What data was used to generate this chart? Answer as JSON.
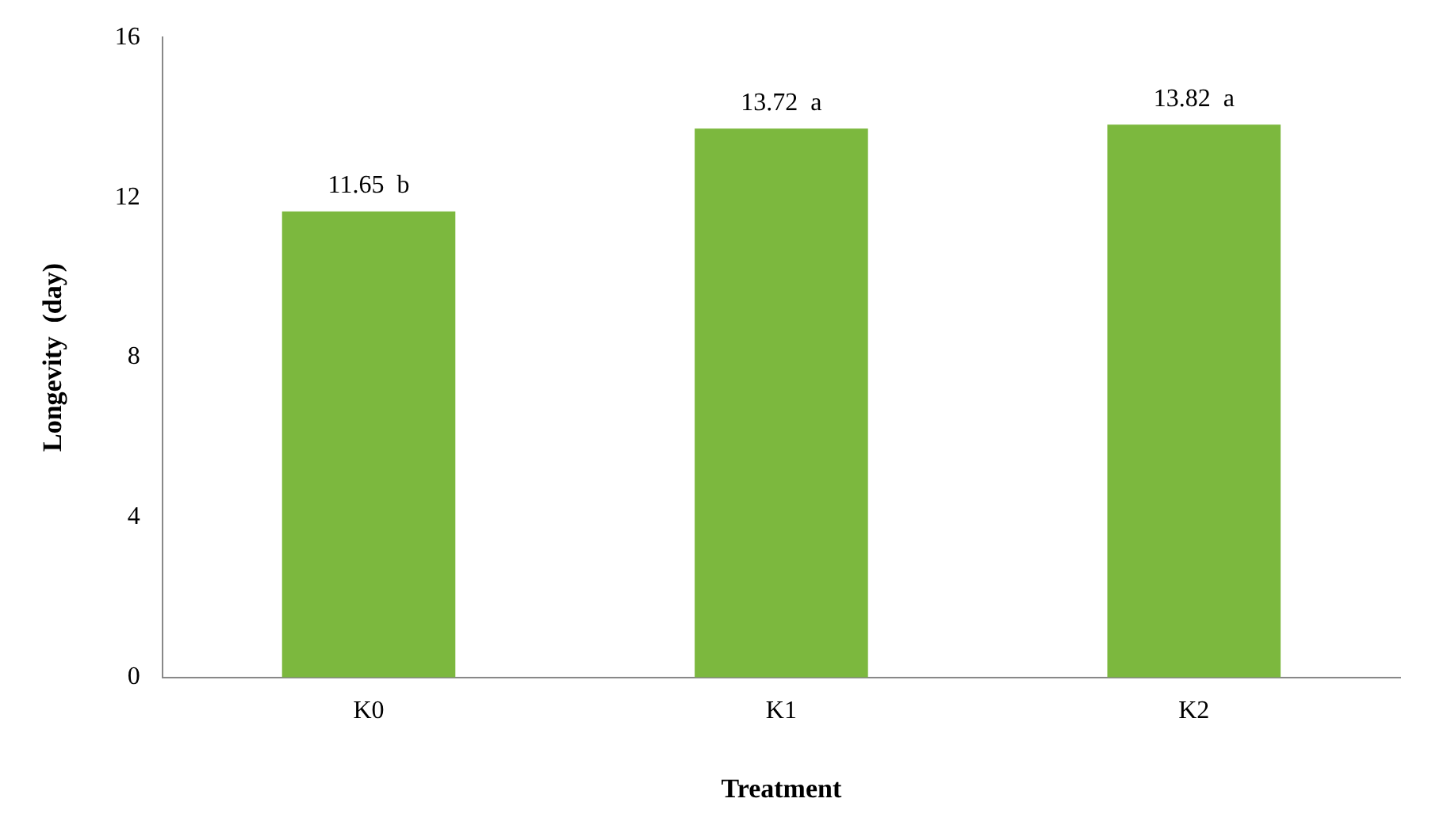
{
  "chart_data": {
    "type": "bar",
    "xlabel": "Treatment",
    "ylabel": "Longevity  (day)",
    "categories": [
      "K0",
      "K1",
      "K2"
    ],
    "values": [
      11.65,
      13.72,
      13.82
    ],
    "value_labels": [
      "11.65  b",
      "13.72  a",
      "13.82  a"
    ],
    "color": "#7cb83e",
    "ylim": [
      0,
      16
    ],
    "yticks": [
      0,
      4,
      8,
      12,
      16
    ],
    "grid": false,
    "legend": false
  }
}
